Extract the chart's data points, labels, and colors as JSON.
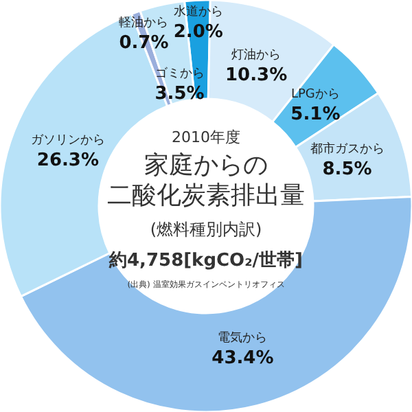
{
  "chart_data": {
    "type": "donut",
    "subtitle": "2010年度",
    "title": "家庭からの二酸化炭素排出量",
    "annotations": [
      "(燃料種別内訳)",
      "約4,758[kgCO₂/世帯]",
      "(出典) 温室効果ガスインベントリオフィス"
    ],
    "categories": [
      "水道から",
      "灯油から",
      "LPGから",
      "都市ガスから",
      "電気から",
      "ガソリンから",
      "軽油から",
      "ゴミから"
    ],
    "values": [
      2.0,
      10.3,
      5.1,
      8.5,
      43.4,
      26.3,
      0.7,
      3.5
    ],
    "value_labels": [
      "2.0%",
      "10.3%",
      "5.1%",
      "8.5%",
      "43.4%",
      "26.3%",
      "0.7%",
      "3.5%"
    ],
    "colors": [
      "#1aa0e0",
      "#d6ebfa",
      "#5cc0ee",
      "#c4e4f8",
      "#92c2ee",
      "#b8e2f8",
      "#9aaedc",
      "#c2e6f8"
    ]
  }
}
